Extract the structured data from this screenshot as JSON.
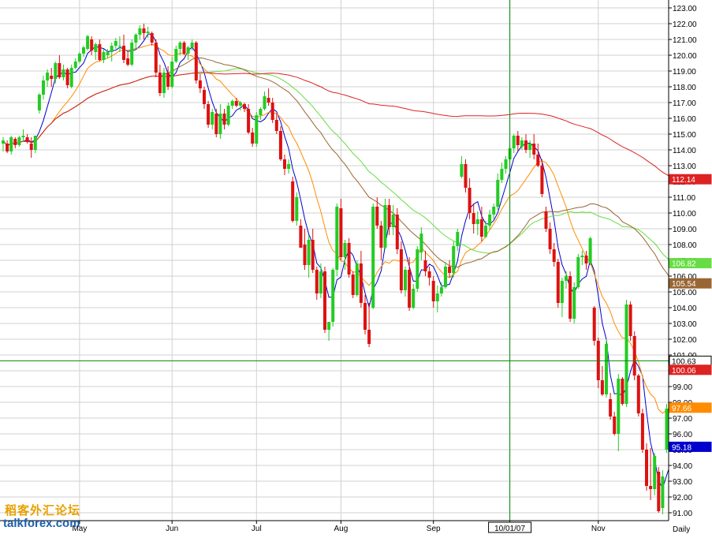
{
  "chart_data": {
    "type": "candlestick",
    "period": "Daily",
    "ylim": [
      90.5,
      123.3
    ],
    "y_ticks": [
      "123.00",
      "122.00",
      "121.00",
      "120.00",
      "119.00",
      "118.00",
      "117.00",
      "116.00",
      "115.00",
      "114.00",
      "113.00",
      "112.00",
      "111.00",
      "110.00",
      "109.00",
      "108.00",
      "107.00",
      "106.00",
      "105.00",
      "104.00",
      "103.00",
      "102.00",
      "101.00",
      "100.00",
      "99.00",
      "98.00",
      "97.00",
      "96.00",
      "95.00",
      "94.00",
      "93.00",
      "92.00",
      "91.00"
    ],
    "x_labels": [
      {
        "label": "May",
        "index": 19
      },
      {
        "label": "Jun",
        "index": 42
      },
      {
        "label": "Jul",
        "index": 63
      },
      {
        "label": "Aug",
        "index": 84
      },
      {
        "label": "Sep",
        "index": 107
      },
      {
        "label": "10/01/07",
        "index": 126
      },
      {
        "label": "Nov",
        "index": 148
      }
    ],
    "crosshair": {
      "index": 126,
      "value": 100.63,
      "label": "10/01/07"
    },
    "ohlc": [
      [
        114.4,
        114.8,
        113.9,
        114.6
      ],
      [
        114.4,
        114.6,
        113.8,
        113.9
      ],
      [
        113.9,
        114.9,
        113.7,
        114.8
      ],
      [
        114.7,
        114.8,
        114.1,
        114.3
      ],
      [
        114.3,
        114.9,
        114.2,
        114.8
      ],
      [
        114.8,
        115.3,
        114.5,
        114.9
      ],
      [
        114.8,
        115.0,
        114.4,
        114.5
      ],
      [
        114.4,
        114.8,
        113.5,
        114.0
      ],
      [
        114.0,
        114.9,
        113.8,
        114.9
      ],
      [
        116.5,
        117.6,
        116.3,
        117.5
      ],
      [
        117.5,
        118.7,
        117.2,
        118.4
      ],
      [
        118.4,
        119.1,
        118.0,
        118.9
      ],
      [
        118.7,
        119.2,
        118.0,
        118.5
      ],
      [
        118.5,
        119.6,
        118.2,
        119.5
      ],
      [
        119.5,
        120.0,
        118.5,
        118.6
      ],
      [
        118.6,
        119.4,
        118.4,
        119.1
      ],
      [
        119.1,
        119.2,
        117.9,
        118.1
      ],
      [
        118.0,
        119.4,
        117.9,
        119.2
      ],
      [
        119.2,
        119.8,
        119.1,
        119.6
      ],
      [
        119.6,
        120.2,
        119.5,
        120.1
      ],
      [
        120.1,
        120.6,
        119.9,
        120.5
      ],
      [
        120.4,
        121.3,
        120.3,
        121.2
      ],
      [
        121.0,
        121.2,
        120.0,
        120.3
      ],
      [
        120.2,
        120.8,
        119.7,
        120.7
      ],
      [
        120.7,
        121.0,
        119.6,
        119.7
      ],
      [
        119.7,
        120.4,
        119.5,
        120.2
      ],
      [
        120.0,
        120.4,
        119.8,
        120.2
      ],
      [
        120.2,
        120.8,
        119.6,
        120.6
      ],
      [
        120.6,
        121.1,
        120.4,
        120.9
      ],
      [
        120.6,
        121.2,
        120.2,
        120.6
      ],
      [
        120.6,
        121.3,
        119.5,
        119.7
      ],
      [
        119.8,
        120.2,
        119.3,
        119.4
      ],
      [
        119.4,
        121.0,
        119.3,
        120.8
      ],
      [
        120.8,
        121.4,
        120.4,
        121.3
      ],
      [
        121.3,
        121.9,
        121.0,
        121.7
      ],
      [
        121.7,
        122.0,
        121.0,
        121.4
      ],
      [
        121.4,
        121.8,
        121.1,
        121.5
      ],
      [
        121.4,
        121.5,
        120.6,
        120.8
      ],
      [
        120.8,
        121.0,
        118.6,
        118.9
      ],
      [
        118.9,
        119.4,
        117.4,
        117.6
      ],
      [
        117.6,
        119.2,
        117.3,
        118.9
      ],
      [
        118.9,
        119.3,
        117.8,
        118.0
      ],
      [
        118.0,
        119.9,
        117.9,
        119.6
      ],
      [
        119.6,
        120.6,
        119.5,
        120.4
      ],
      [
        120.4,
        120.9,
        120.0,
        120.8
      ],
      [
        120.8,
        120.9,
        120.0,
        120.1
      ],
      [
        120.1,
        120.6,
        119.7,
        120.5
      ],
      [
        120.5,
        121.0,
        120.3,
        120.8
      ],
      [
        120.8,
        120.9,
        118.2,
        118.4
      ],
      [
        118.4,
        118.8,
        117.6,
        117.9
      ],
      [
        117.8,
        118.0,
        116.6,
        116.9
      ],
      [
        116.9,
        117.1,
        115.4,
        115.6
      ],
      [
        115.6,
        116.6,
        115.3,
        116.4
      ],
      [
        116.3,
        116.6,
        114.8,
        115.0
      ],
      [
        115.0,
        116.9,
        114.7,
        116.3
      ],
      [
        116.3,
        116.6,
        115.3,
        115.6
      ],
      [
        115.6,
        117.0,
        115.5,
        116.8
      ],
      [
        116.8,
        117.2,
        116.6,
        117.1
      ],
      [
        117.1,
        117.3,
        116.7,
        116.8
      ],
      [
        116.8,
        117.1,
        116.5,
        117.0
      ],
      [
        116.9,
        117.0,
        116.4,
        116.6
      ],
      [
        116.6,
        116.9,
        115.0,
        115.1
      ],
      [
        115.1,
        115.4,
        114.2,
        114.4
      ],
      [
        114.4,
        116.4,
        114.2,
        116.2
      ],
      [
        116.2,
        116.7,
        115.9,
        116.6
      ],
      [
        116.6,
        117.7,
        116.5,
        117.4
      ],
      [
        117.3,
        117.9,
        116.8,
        117.0
      ],
      [
        117.0,
        117.3,
        115.7,
        115.9
      ],
      [
        115.9,
        116.3,
        115.0,
        115.2
      ],
      [
        115.2,
        115.5,
        113.3,
        113.4
      ],
      [
        113.4,
        113.7,
        112.4,
        112.8
      ],
      [
        112.8,
        113.4,
        112.5,
        113.1
      ],
      [
        112.0,
        112.3,
        109.4,
        109.5
      ],
      [
        109.5,
        111.3,
        109.2,
        111.0
      ],
      [
        109.2,
        109.6,
        107.8,
        107.8
      ],
      [
        108.0,
        109.0,
        106.4,
        106.7
      ],
      [
        106.7,
        108.6,
        105.9,
        108.3
      ],
      [
        108.3,
        109.0,
        106.2,
        106.4
      ],
      [
        106.4,
        106.6,
        104.5,
        104.9
      ],
      [
        104.9,
        106.8,
        104.6,
        106.3
      ],
      [
        106.3,
        106.6,
        102.4,
        102.6
      ],
      [
        102.6,
        103.0,
        101.9,
        103.1
      ],
      [
        103.1,
        106.5,
        102.8,
        106.4
      ],
      [
        106.4,
        110.6,
        106.0,
        110.4
      ],
      [
        110.3,
        110.9,
        107.0,
        107.2
      ],
      [
        107.2,
        108.3,
        106.4,
        108.1
      ],
      [
        108.1,
        108.4,
        105.9,
        106.1
      ],
      [
        106.1,
        106.3,
        104.6,
        104.8
      ],
      [
        104.8,
        107.0,
        104.7,
        106.8
      ],
      [
        106.8,
        107.6,
        104.0,
        104.3
      ],
      [
        104.3,
        104.8,
        102.3,
        102.6
      ],
      [
        102.6,
        104.3,
        101.5,
        101.7
      ],
      [
        104.0,
        110.6,
        103.9,
        110.4
      ],
      [
        110.4,
        111.0,
        109.0,
        109.2
      ],
      [
        109.2,
        109.5,
        107.0,
        107.8
      ],
      [
        107.8,
        110.9,
        107.7,
        110.5
      ],
      [
        110.5,
        110.9,
        108.6,
        109.1
      ],
      [
        109.1,
        110.5,
        108.6,
        109.9
      ],
      [
        109.9,
        110.3,
        107.4,
        107.7
      ],
      [
        107.7,
        108.2,
        104.9,
        105.1
      ],
      [
        105.1,
        106.6,
        104.7,
        106.4
      ],
      [
        106.4,
        107.2,
        103.8,
        104.0
      ],
      [
        104.0,
        105.5,
        103.9,
        105.2
      ],
      [
        105.2,
        107.9,
        105.0,
        107.7
      ],
      [
        107.5,
        109.1,
        107.0,
        108.7
      ],
      [
        107.0,
        107.6,
        106.0,
        106.3
      ],
      [
        106.3,
        106.6,
        105.4,
        105.9
      ],
      [
        105.7,
        106.0,
        104.0,
        104.4
      ],
      [
        104.4,
        105.4,
        103.7,
        104.9
      ],
      [
        104.9,
        105.6,
        104.7,
        105.3
      ],
      [
        105.3,
        106.9,
        105.2,
        106.6
      ],
      [
        106.6,
        107.0,
        105.9,
        106.2
      ],
      [
        106.2,
        108.2,
        105.9,
        107.9
      ],
      [
        107.9,
        109.0,
        107.6,
        108.8
      ],
      [
        112.3,
        113.6,
        112.2,
        113.1
      ],
      [
        113.1,
        113.4,
        111.3,
        111.6
      ],
      [
        111.6,
        112.2,
        109.6,
        110.0
      ],
      [
        110.0,
        110.6,
        108.7,
        109.3
      ],
      [
        109.3,
        110.1,
        108.6,
        109.6
      ],
      [
        109.6,
        110.4,
        108.2,
        108.5
      ],
      [
        108.5,
        109.5,
        108.4,
        109.2
      ],
      [
        109.2,
        110.2,
        108.9,
        109.9
      ],
      [
        109.9,
        110.6,
        109.6,
        110.4
      ],
      [
        110.4,
        112.5,
        110.2,
        112.1
      ],
      [
        112.1,
        113.2,
        111.9,
        112.8
      ],
      [
        112.8,
        113.6,
        112.5,
        113.4
      ],
      [
        113.4,
        114.3,
        113.2,
        114.1
      ],
      [
        114.1,
        115.0,
        113.8,
        114.9
      ],
      [
        114.9,
        115.2,
        113.9,
        114.3
      ],
      [
        114.2,
        114.8,
        114.0,
        114.6
      ],
      [
        114.6,
        115.0,
        113.8,
        114.0
      ],
      [
        114.0,
        114.6,
        113.5,
        114.4
      ],
      [
        114.4,
        115.0,
        113.4,
        113.7
      ],
      [
        113.7,
        114.4,
        112.9,
        113.0
      ],
      [
        113.0,
        113.4,
        111.0,
        111.2
      ],
      [
        110.1,
        110.4,
        108.8,
        109.0
      ],
      [
        109.0,
        109.4,
        107.4,
        107.7
      ],
      [
        107.7,
        108.1,
        106.6,
        106.9
      ],
      [
        106.9,
        107.1,
        104.0,
        104.3
      ],
      [
        104.3,
        105.9,
        103.4,
        105.7
      ],
      [
        105.7,
        106.3,
        105.2,
        106.0
      ],
      [
        106.0,
        106.3,
        103.1,
        103.3
      ],
      [
        103.3,
        105.6,
        103.0,
        105.3
      ],
      [
        105.3,
        107.4,
        105.2,
        107.2
      ],
      [
        107.2,
        107.6,
        106.7,
        107.3
      ],
      [
        107.3,
        107.6,
        106.4,
        106.8
      ],
      [
        106.8,
        108.5,
        106.7,
        108.4
      ],
      [
        104.0,
        104.1,
        101.6,
        101.9
      ],
      [
        101.9,
        102.1,
        98.9,
        99.4
      ],
      [
        99.4,
        100.3,
        98.4,
        98.5
      ],
      [
        98.5,
        102.0,
        98.3,
        101.7
      ],
      [
        98.2,
        98.6,
        96.9,
        97.1
      ],
      [
        97.1,
        97.4,
        95.9,
        96.0
      ],
      [
        96.0,
        99.8,
        94.9,
        99.5
      ],
      [
        99.5,
        99.6,
        97.8,
        97.9
      ],
      [
        97.9,
        104.5,
        97.7,
        104.2
      ],
      [
        104.2,
        104.4,
        101.9,
        102.2
      ],
      [
        102.2,
        102.5,
        99.4,
        99.7
      ],
      [
        99.7,
        99.8,
        97.1,
        97.3
      ],
      [
        97.3,
        97.6,
        94.8,
        95.0
      ],
      [
        95.0,
        95.4,
        92.4,
        92.7
      ],
      [
        92.7,
        95.1,
        91.8,
        92.5
      ],
      [
        92.5,
        94.8,
        92.1,
        94.6
      ],
      [
        93.6,
        93.9,
        91.0,
        91.1
      ],
      [
        91.3,
        93.7,
        90.9,
        93.3
      ],
      [
        95.0,
        97.9,
        94.8,
        97.6
      ],
      [
        97.6,
        98.0,
        96.1,
        97.0
      ],
      [
        99.9,
        101.6,
        99.8,
        100.6
      ]
    ],
    "moving_averages": [
      {
        "color": "#0000cc",
        "last": 95.18,
        "label": "95.18"
      },
      {
        "color": "#ff8c00",
        "last": 97.66,
        "label": "97.66"
      },
      {
        "color": "#66dd44",
        "last": 106.82,
        "label": "106.82"
      },
      {
        "color": "#996633",
        "last": 105.54,
        "label": "105.54"
      },
      {
        "color": "#dd2222",
        "last": 112.14,
        "label": "112.14"
      }
    ],
    "price_tags": [
      {
        "label": "112.14",
        "value": 112.14,
        "bg": "#dd2222",
        "fg": "#ffffff"
      },
      {
        "label": "106.82",
        "value": 106.82,
        "bg": "#66dd44",
        "fg": "#ffffff"
      },
      {
        "label": "105.54",
        "value": 105.54,
        "bg": "#996633",
        "fg": "#ffffff"
      },
      {
        "label": "100.63",
        "value": 100.63,
        "bg": "#ffffff",
        "fg": "#000000"
      },
      {
        "label": "100.06",
        "value": 100.06,
        "bg": "#dd2222",
        "fg": "#ffffff"
      },
      {
        "label": "97.66",
        "value": 97.66,
        "bg": "#ff8c00",
        "fg": "#ffffff"
      },
      {
        "label": "95.18",
        "value": 95.18,
        "bg": "#0000cc",
        "fg": "#ffffff"
      }
    ],
    "colors": {
      "up": "#22cc22",
      "down": "#dd1111",
      "grid": "#d0d0d0",
      "crosshair": "#008800"
    }
  },
  "watermark": {
    "line1": "稻客外汇论坛",
    "line2": "talkforex.com"
  }
}
